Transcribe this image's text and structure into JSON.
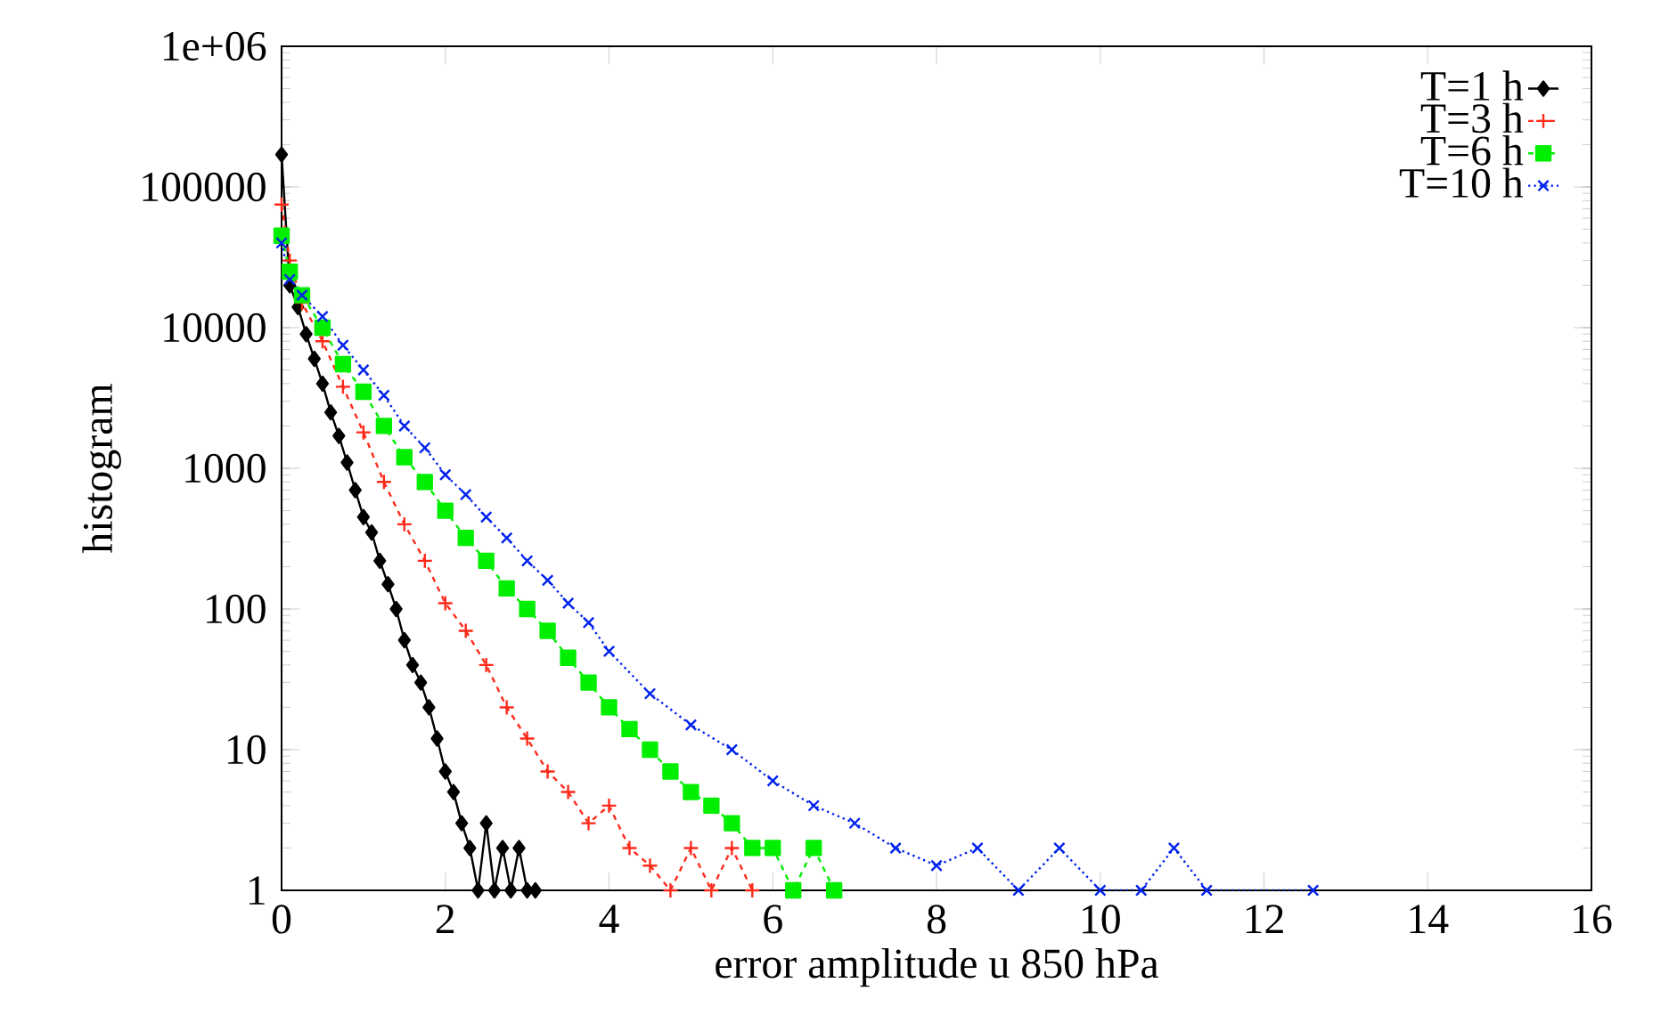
{
  "chart_data": {
    "type": "line",
    "xlabel": "error amplitude u 850 hPa",
    "ylabel": "histogram",
    "log": "y",
    "xlim": [
      0,
      16
    ],
    "xticks": [
      0,
      2,
      4,
      6,
      8,
      10,
      12,
      14,
      16
    ],
    "ylim": [
      1,
      1000000
    ],
    "yticks": [
      1,
      10,
      100,
      1000,
      10000,
      100000,
      {
        "value": 1000000,
        "label": "1e+06"
      }
    ],
    "legend": "top right",
    "grid": false,
    "series": [
      {
        "name": "T=1 h",
        "color": "#000000",
        "marker": "diamond",
        "line_style": "solid",
        "x": [
          0,
          0.05,
          0.1,
          0.2,
          0.3,
          0.4,
          0.5,
          0.6,
          0.7,
          0.8,
          0.9,
          1.0,
          1.1,
          1.2,
          1.3,
          1.4,
          1.5,
          1.6,
          1.7,
          1.8,
          1.9,
          2.0,
          2.1,
          2.2,
          2.3,
          2.4,
          2.5,
          2.6,
          2.7,
          2.8,
          2.9,
          3.0,
          3.1
        ],
        "values": [
          170000,
          null,
          20000,
          14000,
          9000,
          6000,
          4000,
          2500,
          1700,
          1100,
          700,
          450,
          350,
          220,
          150,
          100,
          60,
          40,
          30,
          20,
          12,
          7,
          5,
          3,
          2,
          1,
          3,
          1,
          2,
          1,
          2,
          1,
          1
        ]
      },
      {
        "name": "T=3 h",
        "color": "#ff2a1a",
        "marker": "cross",
        "line_style": "dashed",
        "x": [
          0,
          0.1,
          0.25,
          0.5,
          0.75,
          1.0,
          1.25,
          1.5,
          1.75,
          2.0,
          2.25,
          2.5,
          2.75,
          3.0,
          3.25,
          3.5,
          3.75,
          4.0,
          4.25,
          4.5,
          4.75,
          5.0,
          5.25,
          5.5,
          5.75
        ],
        "values": [
          75000,
          30000,
          15000,
          8000,
          3800,
          1800,
          800,
          400,
          220,
          110,
          70,
          40,
          20,
          12,
          7,
          5,
          3,
          4,
          2,
          1.5,
          1,
          2,
          1,
          2,
          1
        ]
      },
      {
        "name": "T=6 h",
        "color": "#00ee00",
        "marker": "square",
        "line_style": "dashed",
        "x": [
          0,
          0.1,
          0.25,
          0.5,
          0.75,
          1.0,
          1.25,
          1.5,
          1.75,
          2.0,
          2.25,
          2.5,
          2.75,
          3.0,
          3.25,
          3.5,
          3.75,
          4.0,
          4.25,
          4.5,
          4.75,
          5.0,
          5.25,
          5.5,
          5.75,
          6.0,
          6.25,
          6.5,
          6.75
        ],
        "values": [
          45000,
          25000,
          17000,
          10000,
          5500,
          3500,
          2000,
          1200,
          800,
          500,
          320,
          220,
          140,
          100,
          70,
          45,
          30,
          20,
          14,
          10,
          7,
          5,
          4,
          3,
          2,
          2,
          1,
          2,
          1
        ]
      },
      {
        "name": "T=10 h",
        "color": "#0022ee",
        "marker": "x",
        "line_style": "dotted",
        "x": [
          0,
          0.1,
          0.25,
          0.5,
          0.75,
          1.0,
          1.25,
          1.5,
          1.75,
          2.0,
          2.25,
          2.5,
          2.75,
          3.0,
          3.25,
          3.5,
          3.75,
          4.0,
          4.5,
          5.0,
          5.5,
          6.0,
          6.5,
          7.0,
          7.5,
          8.0,
          8.5,
          9.0,
          9.5,
          10.0,
          10.5,
          10.9,
          11.3,
          12.6
        ],
        "values": [
          40000,
          22000,
          17000,
          12000,
          7500,
          5000,
          3300,
          2000,
          1400,
          900,
          650,
          450,
          320,
          220,
          160,
          110,
          80,
          50,
          25,
          15,
          10,
          6,
          4,
          3,
          2,
          1.5,
          2,
          1,
          2,
          1,
          1,
          2,
          1,
          1
        ]
      }
    ]
  }
}
